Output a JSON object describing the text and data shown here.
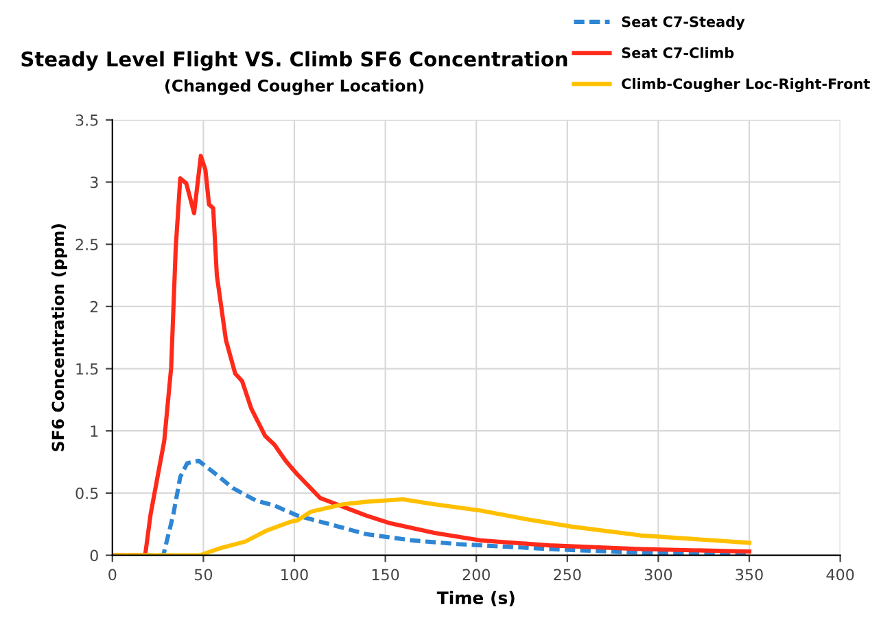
{
  "chart_data": {
    "type": "line",
    "title": "Steady Level Flight VS. Climb SF6 Concentration",
    "subtitle": "(Changed Cougher Location)",
    "xlabel": "Time (s)",
    "ylabel": "SF6 Concentration (ppm)",
    "xlim": [
      0,
      400
    ],
    "xticks": [
      0,
      50,
      100,
      150,
      200,
      250,
      300,
      350,
      400
    ],
    "ylim": [
      0,
      3.5
    ],
    "yticks": [
      0,
      0.5,
      1,
      1.5,
      2,
      2.5,
      3,
      3.5
    ],
    "grid": true,
    "legend": "top right",
    "marker": "none",
    "series": [
      {
        "name": "Seat C7-Steady",
        "color": "#2e86d4",
        "line_style": "dashed",
        "x": [
          0,
          28,
          33.5,
          37.3,
          41.1,
          47.4,
          56.2,
          66.2,
          78.9,
          89,
          101.5,
          114.2,
          127,
          139.4,
          164.6,
          189.8,
          215,
          240,
          290,
          350
        ],
        "values": [
          0,
          0,
          0.33,
          0.63,
          0.74,
          0.76,
          0.66,
          0.54,
          0.44,
          0.4,
          0.32,
          0.27,
          0.22,
          0.17,
          0.12,
          0.09,
          0.07,
          0.05,
          0.02,
          0.01
        ]
      },
      {
        "name": "Seat C7-Climb",
        "color": "#ff2a1a",
        "line_style": "solid",
        "x": [
          0,
          18,
          21,
          24.8,
          28.5,
          32.3,
          34.8,
          37.3,
          40.6,
          44.9,
          48.6,
          51.1,
          53.1,
          55.4,
          57.4,
          62.4,
          67.5,
          71.3,
          76.3,
          83.9,
          89,
          95.2,
          101.6,
          114.2,
          126.8,
          139.4,
          152,
          177,
          202,
          240,
          290,
          350
        ],
        "values": [
          0,
          0,
          0.33,
          0.63,
          0.92,
          1.51,
          2.47,
          3.03,
          2.99,
          2.75,
          3.21,
          3.1,
          2.82,
          2.79,
          2.25,
          1.73,
          1.46,
          1.4,
          1.18,
          0.96,
          0.89,
          0.76,
          0.65,
          0.46,
          0.39,
          0.32,
          0.26,
          0.18,
          0.12,
          0.08,
          0.05,
          0.03
        ]
      },
      {
        "name": "Climb-Cougher Loc-Right-Front",
        "color": "#ffc000",
        "line_style": "solid",
        "x": [
          0,
          48,
          60,
          73,
          85,
          98,
          101.6,
          109,
          126.8,
          139.4,
          149.5,
          159.6,
          177,
          202,
          227.5,
          252.6,
          290,
          350
        ],
        "values": [
          0,
          0,
          0.06,
          0.11,
          0.2,
          0.27,
          0.28,
          0.35,
          0.41,
          0.43,
          0.44,
          0.45,
          0.41,
          0.36,
          0.29,
          0.23,
          0.16,
          0.1
        ]
      }
    ]
  }
}
